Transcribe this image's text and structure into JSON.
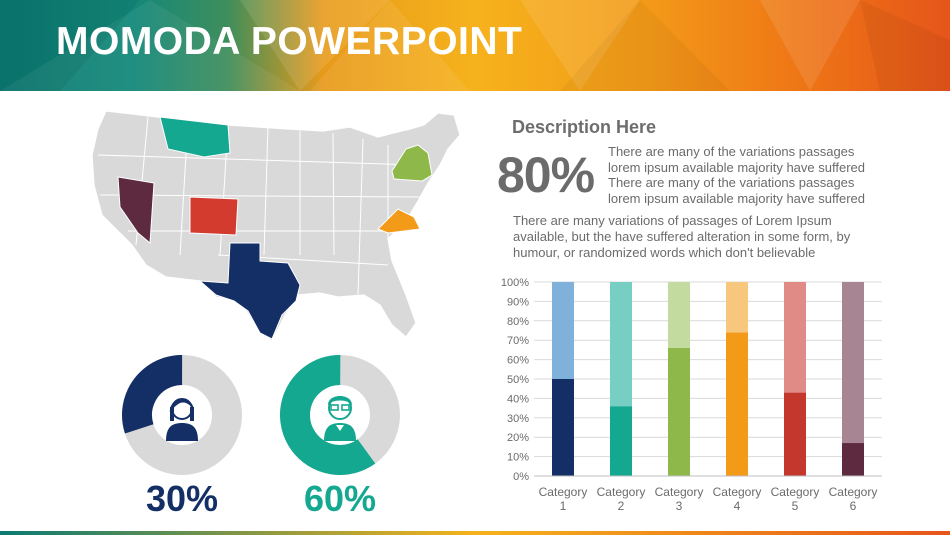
{
  "header": {
    "title": "MOMODA POWERPOINT",
    "colors": {
      "teal": "#0a7a72",
      "orange": "#f39a18",
      "red": "#e6551a"
    }
  },
  "map": {
    "icon": "usa-map",
    "base_color": "#d9d9d9",
    "highlighted_states": [
      {
        "name": "Montana",
        "color": "#15a891"
      },
      {
        "name": "Nevada",
        "color": "#5e2a3f"
      },
      {
        "name": "Colorado",
        "color": "#d33b2f"
      },
      {
        "name": "Texas",
        "color": "#142f66"
      },
      {
        "name": "New York",
        "color": "#8fb84a"
      },
      {
        "name": "Virginia",
        "color": "#f39a18"
      }
    ]
  },
  "stats": [
    {
      "value": "30%",
      "fraction": 0.3,
      "color": "#142f66",
      "icon": "female-avatar-icon"
    },
    {
      "value": "60%",
      "fraction": 0.6,
      "color": "#15a891",
      "icon": "male-avatar-icon"
    }
  ],
  "description": {
    "title": "Description Here",
    "big_percent": "80%",
    "paragraph1": "There are many of the variations passages lorem ipsum available majority have suffered There are many of the variations passages lorem ipsum available majority have suffered",
    "paragraph2": "There are many variations of passages  of Lorem Ipsum available, but the have suffered alteration in some  form, by humour, or randomized words which  don't believable"
  },
  "chart_data": {
    "type": "bar",
    "stacked": true,
    "categories": [
      "Category 1",
      "Category 2",
      "Category 3",
      "Category 4",
      "Category 5",
      "Category 6"
    ],
    "series": [
      {
        "values": [
          50,
          36,
          66,
          74,
          43,
          17
        ]
      },
      {
        "values": [
          50,
          64,
          34,
          26,
          57,
          83
        ]
      }
    ],
    "colors_dark": [
      "#142f66",
      "#15a891",
      "#8fb84a",
      "#f39a18",
      "#c3372d",
      "#5e2a3f"
    ],
    "colors_light": [
      "#7fb1da",
      "#77cfc3",
      "#c4dba0",
      "#f8c77e",
      "#e08b86",
      "#a78593"
    ],
    "ylim": [
      0,
      100
    ],
    "yticks": [
      "0%",
      "10%",
      "20%",
      "30%",
      "40%",
      "50%",
      "60%",
      "70%",
      "80%",
      "90%",
      "100%"
    ],
    "grid": true,
    "legend": "none"
  }
}
